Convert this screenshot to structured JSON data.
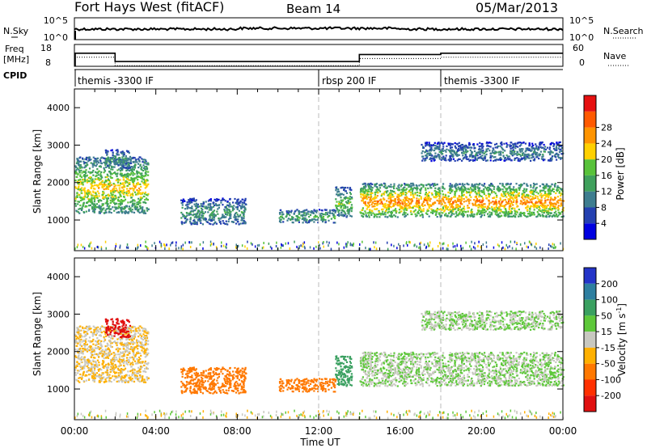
{
  "header": {
    "station": "Fort Hays West (fitACF)",
    "beam": "Beam 14",
    "date": "05/Mar/2013"
  },
  "strips": {
    "nsky_label": "N.Sky",
    "nsearch_label": "N.Search",
    "noise_ticks": [
      "10^5",
      "10^0"
    ],
    "freq_label_line1": "Freq",
    "freq_label_line2": "[MHz]",
    "freq_ticks": [
      "18",
      "8"
    ],
    "nave_label": "Nave",
    "nave_ticks": [
      "60",
      "0"
    ],
    "cpid_label": "CPID"
  },
  "cpid_segments": [
    {
      "label": "themis -3300 IF",
      "start_hour": 0
    },
    {
      "label": "rbsp 200 IF",
      "start_hour": 12
    },
    {
      "label": "themis -3300 IF",
      "start_hour": 18
    }
  ],
  "x_axis": {
    "title": "Time UT",
    "tick_labels": [
      "00:00",
      "04:00",
      "08:00",
      "12:00",
      "16:00",
      "20:00",
      "00:00"
    ],
    "range_hours": [
      0,
      24
    ]
  },
  "panels": {
    "power": {
      "ylabel": "Slant Range [km]",
      "ytick_labels": [
        "1000",
        "2000",
        "3000",
        "4000"
      ],
      "cbar_title": "Power [dB]",
      "cbar_labels": [
        "4",
        "8",
        "12",
        "16",
        "20",
        "24",
        "28"
      ],
      "cbar_colors": [
        "#0000e0",
        "#2440b0",
        "#3e7d8f",
        "#3fa05c",
        "#58c23a",
        "#ffd000",
        "#ff9400",
        "#ff5a00",
        "#e61010"
      ]
    },
    "velocity": {
      "ylabel": "Slant Range [km]",
      "ytick_labels": [
        "1000",
        "2000",
        "3000",
        "4000"
      ],
      "cbar_title": "Velocity [m s",
      "cbar_title_sup": "-1",
      "cbar_title_end": "]",
      "cbar_labels": [
        "200",
        "100",
        "50",
        "15",
        "-15",
        "-50",
        "-100",
        "-200"
      ],
      "cbar_colors": [
        "#2434c8",
        "#2e7fa0",
        "#3aa060",
        "#5ec83a",
        "#c8c8c0",
        "#ffb000",
        "#ff7800",
        "#ff3000",
        "#e01010"
      ]
    }
  },
  "chart_data": {
    "type": "heatmap",
    "title": "Fort Hays West (fitACF)   Beam 14   05/Mar/2013",
    "xlabel": "Time UT",
    "ylabel": "Slant Range [km]",
    "xlim_hours": [
      0,
      24
    ],
    "ylim_km": [
      180,
      4500
    ],
    "grid": false,
    "frequency_mhz": [
      {
        "from": 0.0,
        "to": 2.0,
        "value": 14.0
      },
      {
        "from": 2.0,
        "to": 14.0,
        "value": 10.2
      },
      {
        "from": 14.0,
        "to": 18.0,
        "value": 13.4
      },
      {
        "from": 18.0,
        "to": 24.0,
        "value": 14.0
      }
    ],
    "echo_regions": [
      {
        "t0": 0.0,
        "t1": 3.6,
        "r0": 1200,
        "r1": 2700,
        "power_db": 20,
        "velocity_ms": -15
      },
      {
        "t0": 1.5,
        "t1": 2.7,
        "r0": 2400,
        "r1": 2900,
        "power_db": 12,
        "velocity_ms": -200
      },
      {
        "t0": 5.2,
        "t1": 8.4,
        "r0": 900,
        "r1": 1600,
        "power_db": 12,
        "velocity_ms": -50
      },
      {
        "t0": 10.0,
        "t1": 12.8,
        "r0": 950,
        "r1": 1300,
        "power_db": 14,
        "velocity_ms": -50
      },
      {
        "t0": 12.8,
        "t1": 13.6,
        "r0": 1100,
        "r1": 1900,
        "power_db": 16,
        "velocity_ms": 50
      },
      {
        "t0": 14.0,
        "t1": 24.0,
        "r0": 1100,
        "r1": 2000,
        "power_db": 24,
        "velocity_ms": 0
      },
      {
        "t0": 17.0,
        "t1": 24.0,
        "r0": 2600,
        "r1": 3100,
        "power_db": 10,
        "velocity_ms": 0
      }
    ]
  }
}
